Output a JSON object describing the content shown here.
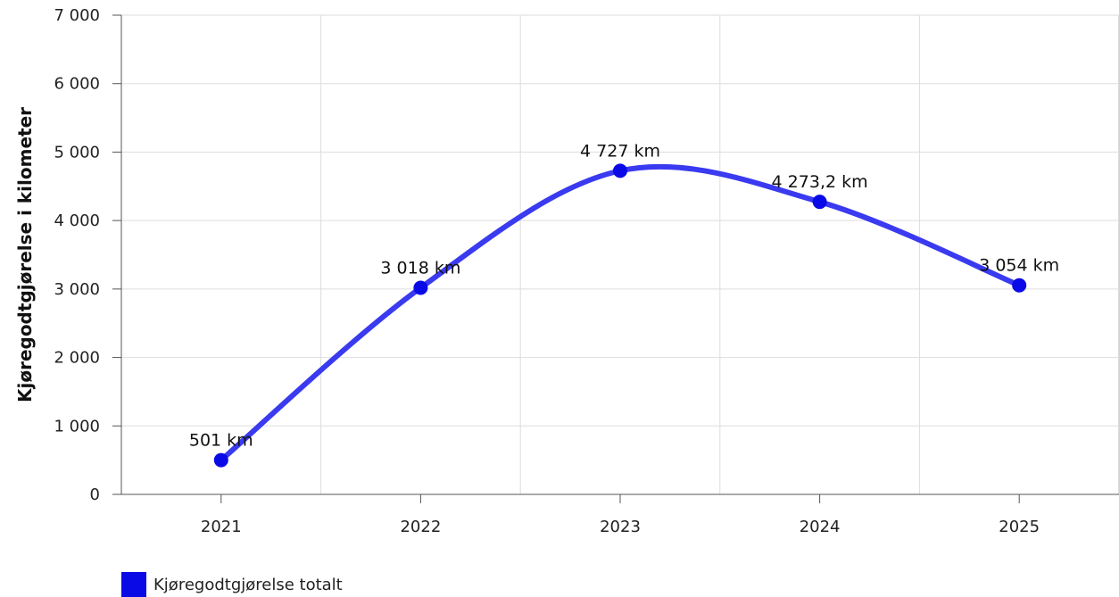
{
  "chart_data": {
    "type": "line",
    "x": [
      "2021",
      "2022",
      "2023",
      "2024",
      "2025"
    ],
    "series": [
      {
        "name": "Kjøregodtgjørelse totalt",
        "values": [
          501,
          3018,
          4727,
          4273.2,
          3054
        ],
        "data_labels": [
          "501 km",
          "3 018 km",
          "4 727 km",
          "4 273,2 km",
          "3 054 km"
        ]
      }
    ],
    "ylabel": "Kjøregodtgjørelse i kilometer",
    "xlabel": "",
    "ylim": [
      0,
      7000
    ],
    "yticks": [
      0,
      1000,
      2000,
      3000,
      4000,
      5000,
      6000,
      7000
    ],
    "ytick_labels": [
      "0",
      "1 000",
      "2 000",
      "3 000",
      "4 000",
      "5 000",
      "6 000",
      "7 000"
    ],
    "grid": true,
    "smooth": true,
    "legend_position": "bottom-left",
    "series_color": "#3a3af0",
    "marker_color": "#0a0ae6"
  }
}
